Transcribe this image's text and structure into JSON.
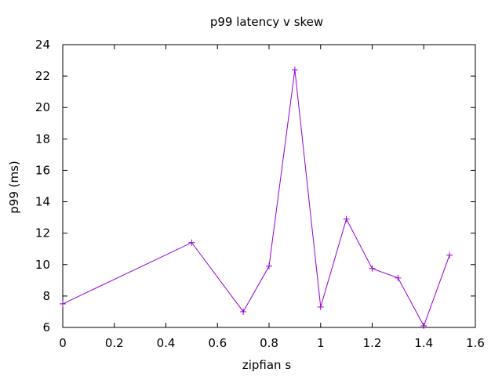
{
  "chart_data": {
    "type": "line",
    "title": "p99 latency v skew",
    "xlabel": "zipfian s",
    "ylabel": "p99 (ms)",
    "xlim": [
      0,
      1.6
    ],
    "ylim": [
      6,
      24
    ],
    "xticks": [
      "0",
      "0.2",
      "0.4",
      "0.6",
      "0.8",
      "1",
      "1.2",
      "1.4",
      "1.6"
    ],
    "yticks": [
      "6",
      "8",
      "10",
      "12",
      "14",
      "16",
      "18",
      "20",
      "22",
      "24"
    ],
    "grid": false,
    "legend": "none",
    "marker": "plus",
    "series": [
      {
        "color": "#9400d3",
        "x": [
          0,
          0.5,
          0.7,
          0.8,
          0.9,
          1.0,
          1.1,
          1.2,
          1.3,
          1.4,
          1.5
        ],
        "y": [
          7.5,
          11.4,
          7.0,
          9.9,
          22.4,
          7.3,
          12.9,
          9.75,
          9.15,
          6.1,
          10.6
        ]
      }
    ]
  }
}
